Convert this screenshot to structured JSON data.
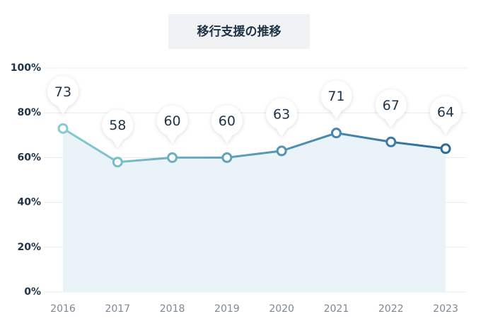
{
  "chart_data": {
    "type": "line",
    "title": "移行支援の推移",
    "categories": [
      "2016",
      "2017",
      "2018",
      "2019",
      "2020",
      "2021",
      "2022",
      "2023"
    ],
    "values": [
      73,
      58,
      60,
      60,
      63,
      71,
      67,
      64
    ],
    "ylim": [
      0,
      100
    ],
    "yticks": [
      {
        "value": 0,
        "label": "0%"
      },
      {
        "value": 20,
        "label": "20%"
      },
      {
        "value": 40,
        "label": "40%"
      },
      {
        "value": 60,
        "label": "60%"
      },
      {
        "value": 80,
        "label": "80%"
      },
      {
        "value": 100,
        "label": "100%"
      }
    ],
    "grid": true,
    "line_colors": [
      "#86cbd3",
      "#2e6b9e"
    ],
    "area_color": "#eaf3f7"
  }
}
